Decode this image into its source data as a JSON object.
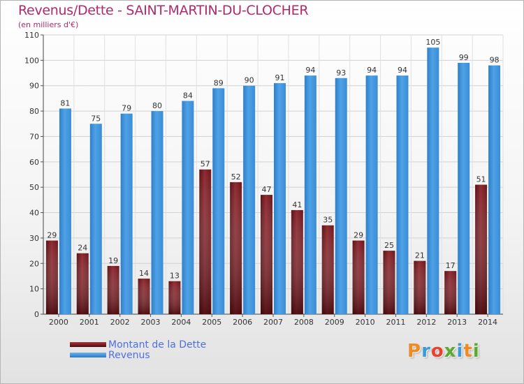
{
  "header": {
    "title": "Revenus/Dette - SAINT-MARTIN-DU-CLOCHER",
    "subtitle": "(en milliers d'€)"
  },
  "brand": {
    "text": "Proxiti",
    "colors": [
      "#f08a24",
      "#3a9ad9",
      "#e8412c",
      "#5aaa2f",
      "#3a9ad9",
      "#f08a24",
      "#5aaa2f"
    ]
  },
  "chart_data": {
    "type": "bar",
    "categories": [
      "2000",
      "2001",
      "2002",
      "2003",
      "2004",
      "2005",
      "2006",
      "2007",
      "2008",
      "2009",
      "2010",
      "2011",
      "2012",
      "2013",
      "2014"
    ],
    "series": [
      {
        "name": "Montant de la Dette",
        "color": "#7a1e22",
        "values": [
          29,
          24,
          19,
          14,
          13,
          57,
          52,
          47,
          41,
          35,
          29,
          25,
          21,
          17,
          51
        ]
      },
      {
        "name": "Revenus",
        "color": "#3d8fd6",
        "values": [
          81,
          75,
          79,
          80,
          84,
          89,
          90,
          91,
          94,
          93,
          94,
          94,
          105,
          99,
          98
        ]
      }
    ],
    "ylim": [
      0,
      110
    ],
    "yticks": [
      0,
      10,
      20,
      30,
      40,
      50,
      60,
      70,
      80,
      90,
      100,
      110
    ],
    "grid": true,
    "legend": "bottom-left"
  }
}
